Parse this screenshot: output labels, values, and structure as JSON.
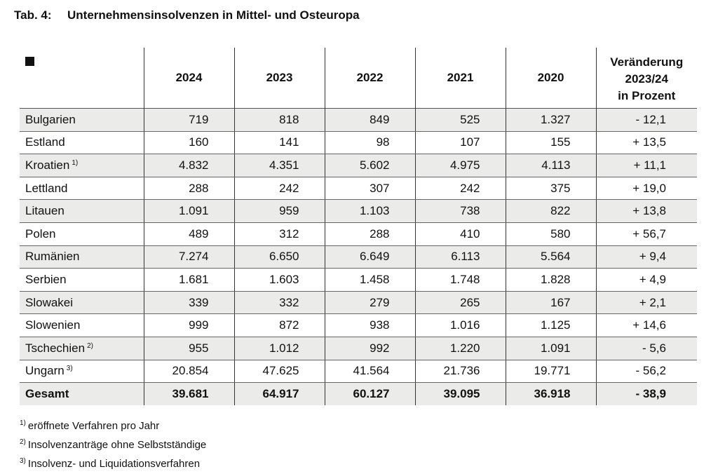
{
  "title": {
    "label": "Tab. 4:",
    "text": "Unternehmensinsolvenzen in Mittel- und Osteuropa"
  },
  "table": {
    "headers": [
      "2024",
      "2023",
      "2022",
      "2021",
      "2020"
    ],
    "change_header": [
      "Veränderung",
      "2023/24",
      "in Prozent"
    ],
    "rows": [
      {
        "name": "Bulgarien",
        "note": "",
        "values": [
          "719",
          "818",
          "849",
          "525",
          "1.327"
        ],
        "change": "- 12,1"
      },
      {
        "name": "Estland",
        "note": "",
        "values": [
          "160",
          "141",
          "98",
          "107",
          "155"
        ],
        "change": "+ 13,5"
      },
      {
        "name": "Kroatien",
        "note": "1)",
        "values": [
          "4.832",
          "4.351",
          "5.602",
          "4.975",
          "4.113"
        ],
        "change": "+ 11,1"
      },
      {
        "name": "Lettland",
        "note": "",
        "values": [
          "288",
          "242",
          "307",
          "242",
          "375"
        ],
        "change": "+ 19,0"
      },
      {
        "name": "Litauen",
        "note": "",
        "values": [
          "1.091",
          "959",
          "1.103",
          "738",
          "822"
        ],
        "change": "+ 13,8"
      },
      {
        "name": "Polen",
        "note": "",
        "values": [
          "489",
          "312",
          "288",
          "410",
          "580"
        ],
        "change": "+ 56,7"
      },
      {
        "name": "Rumänien",
        "note": "",
        "values": [
          "7.274",
          "6.650",
          "6.649",
          "6.113",
          "5.564"
        ],
        "change": "+ 9,4"
      },
      {
        "name": "Serbien",
        "note": "",
        "values": [
          "1.681",
          "1.603",
          "1.458",
          "1.748",
          "1.828"
        ],
        "change": "+ 4,9"
      },
      {
        "name": "Slowakei",
        "note": "",
        "values": [
          "339",
          "332",
          "279",
          "265",
          "167"
        ],
        "change": "+ 2,1"
      },
      {
        "name": "Slowenien",
        "note": "",
        "values": [
          "999",
          "872",
          "938",
          "1.016",
          "1.125"
        ],
        "change": "+ 14,6"
      },
      {
        "name": "Tschechien",
        "note": "2)",
        "values": [
          "955",
          "1.012",
          "992",
          "1.220",
          "1.091"
        ],
        "change": "- 5,6"
      },
      {
        "name": "Ungarn",
        "note": "3)",
        "values": [
          "20.854",
          "47.625",
          "41.564",
          "21.736",
          "19.771"
        ],
        "change": "- 56,2"
      },
      {
        "name": "Gesamt",
        "note": "",
        "values": [
          "39.681",
          "64.917",
          "60.127",
          "39.095",
          "36.918"
        ],
        "change": "- 38,9"
      }
    ]
  },
  "footnotes": [
    {
      "mark": "1)",
      "text": "eröffnete Verfahren pro Jahr"
    },
    {
      "mark": "2)",
      "text": "Insolvenzanträge ohne Selbstständige"
    },
    {
      "mark": "3)",
      "text": "Insolvenz- und Liquidationsverfahren"
    }
  ],
  "colors": {
    "row_shade": "#ebebea",
    "text": "#111111"
  }
}
